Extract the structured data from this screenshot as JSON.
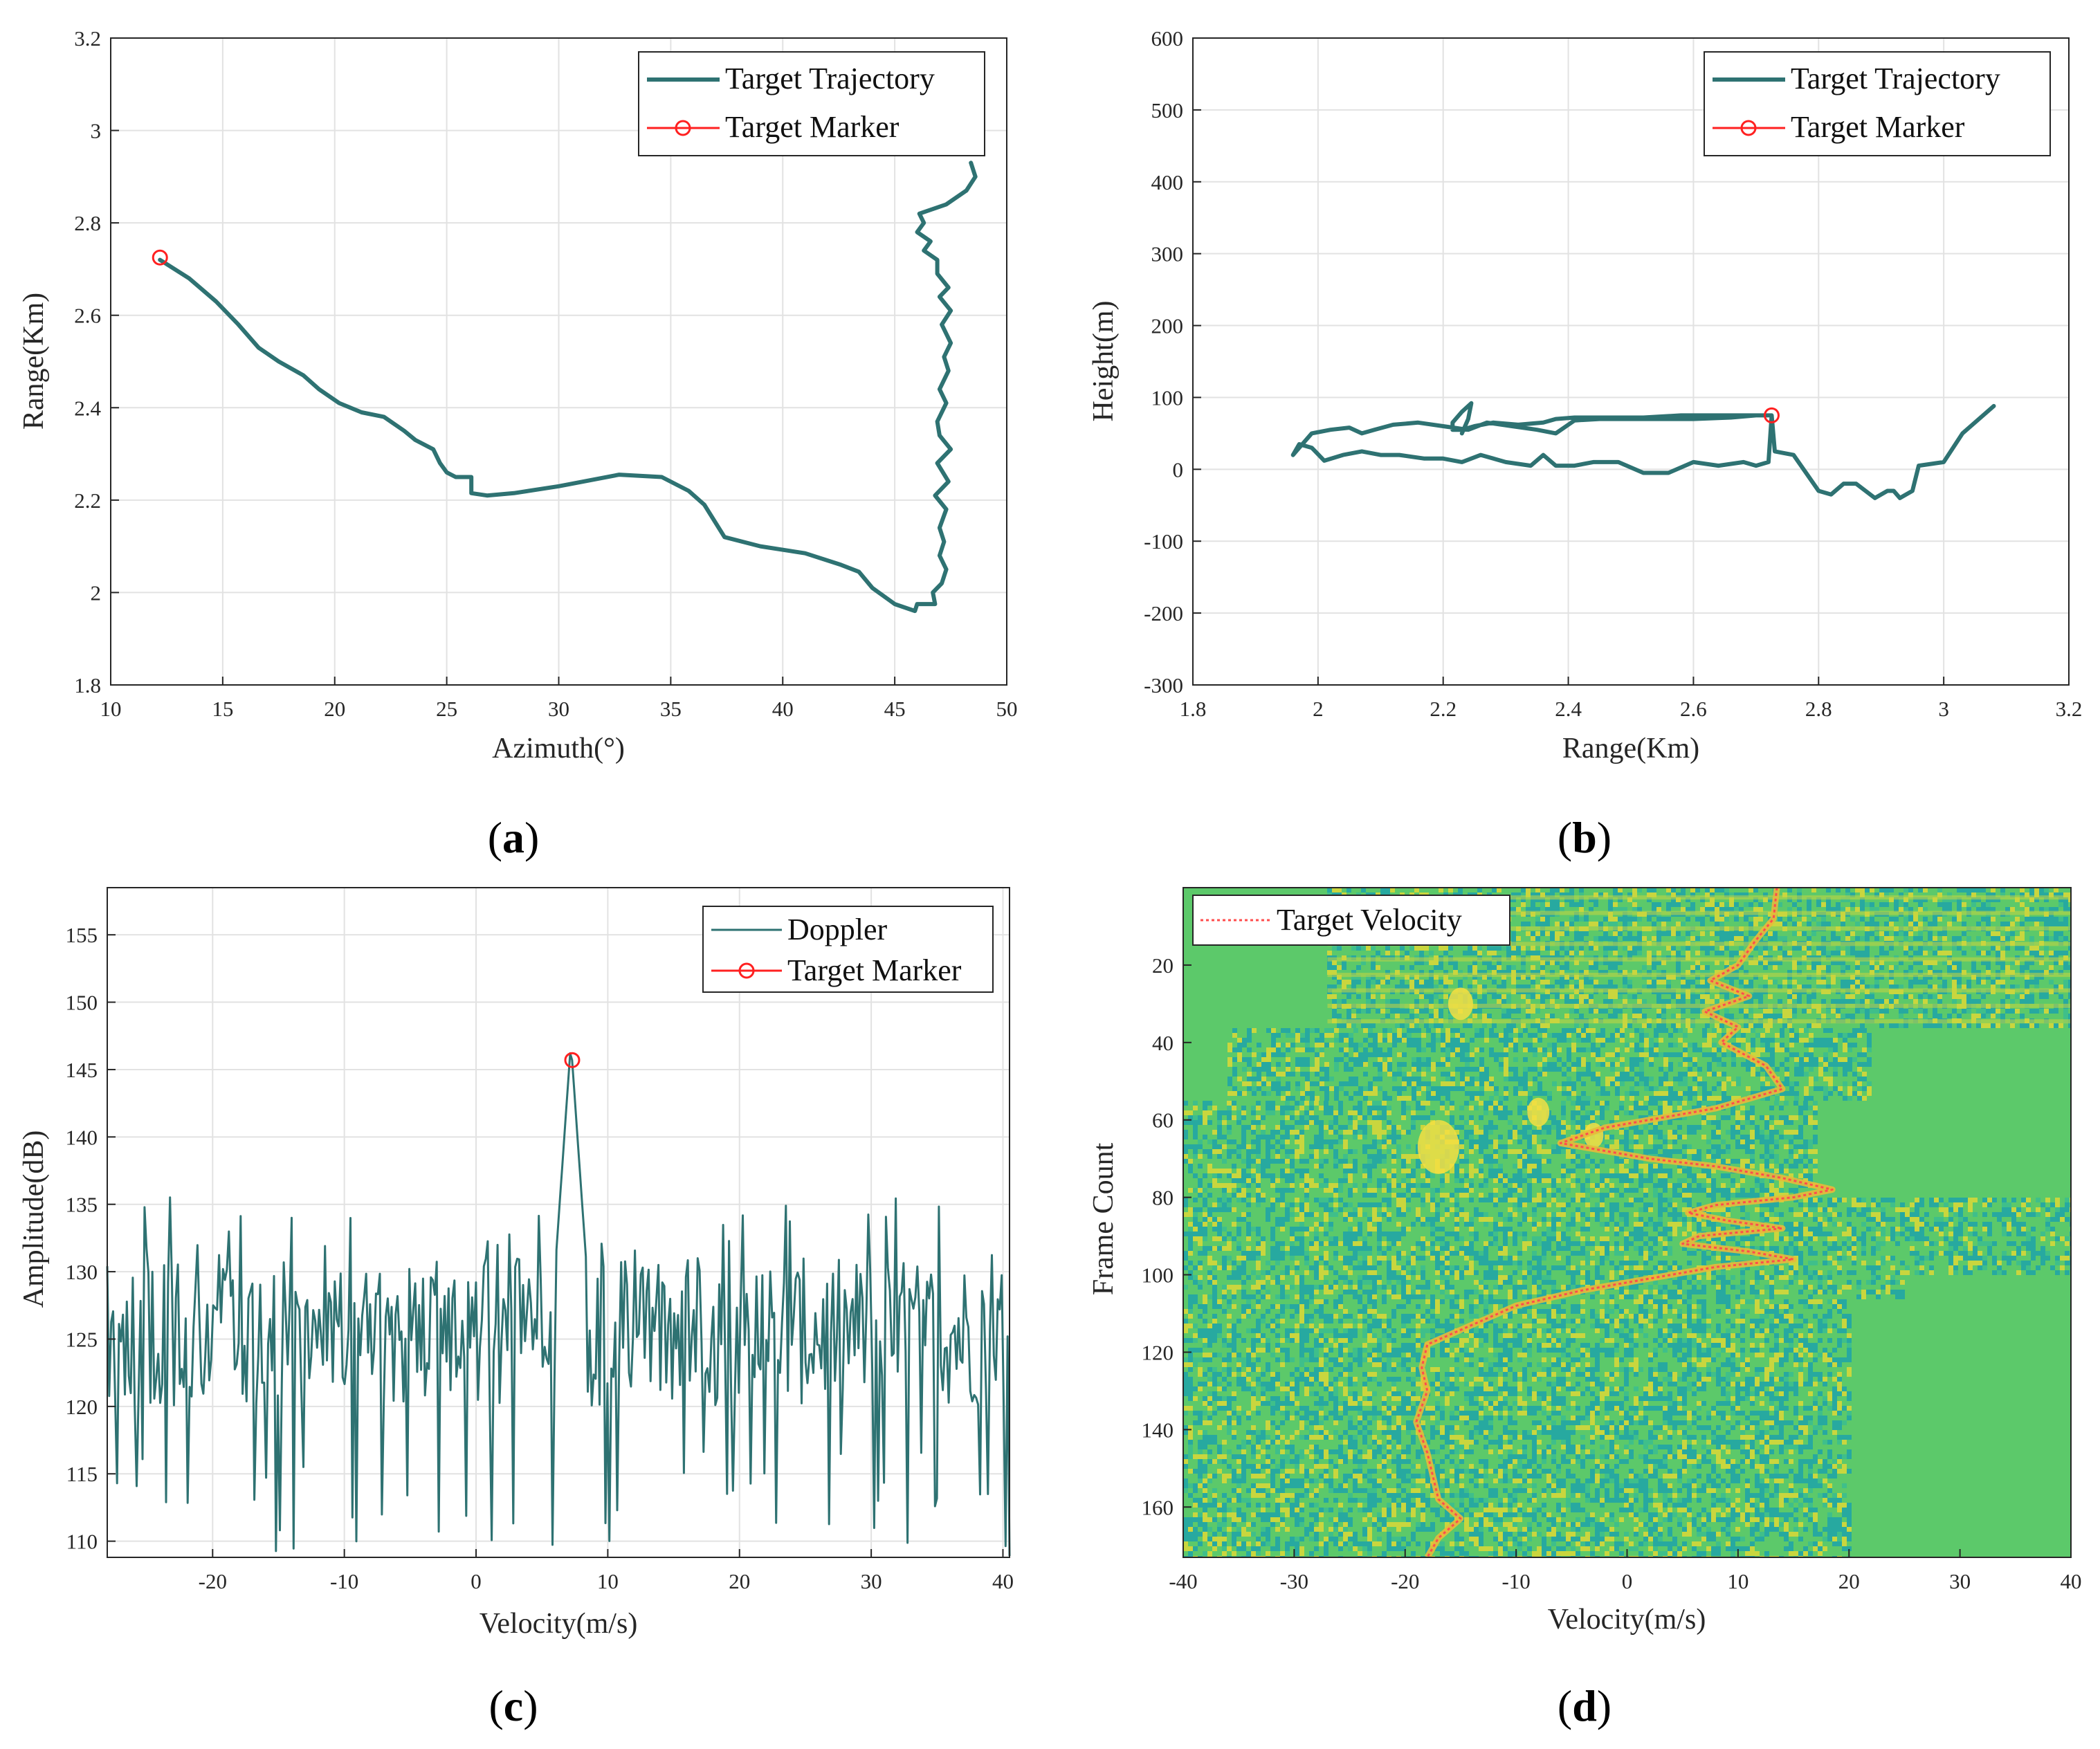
{
  "chart_data": [
    {
      "id": "a",
      "type": "line",
      "panel_label": "a",
      "xlabel": "Azimuth(°)",
      "ylabel": "Range(Km)",
      "xlim": [
        10,
        50
      ],
      "ylim": [
        1.8,
        3.2
      ],
      "xticks": [
        10,
        15,
        20,
        25,
        30,
        35,
        40,
        45,
        50
      ],
      "yticks": [
        1.8,
        2,
        2.2,
        2.4,
        2.6,
        2.8,
        3,
        3.2
      ],
      "ytick_labels": [
        "1.8",
        "2",
        "2.2",
        "2.4",
        "2.6",
        "2.8",
        "3",
        "3.2"
      ],
      "grid": true,
      "legend": {
        "location": "top-right",
        "entries": [
          "Target Trajectory",
          "Target Marker"
        ]
      },
      "series": [
        {
          "name": "Target Trajectory",
          "color": "#2e7272",
          "x": [
            12.2,
            13.5,
            14.7,
            15.7,
            16.6,
            17.5,
            18.6,
            19.3,
            20.2,
            21.2,
            22.2,
            23.1,
            23.6,
            24.4,
            24.7,
            25.0,
            25.4,
            26.1,
            26.1,
            26.8,
            28.0,
            30.0,
            32.7,
            34.6,
            35.8,
            36.5,
            37.4,
            39.0,
            41.0,
            42.6,
            43.4,
            44.0,
            45.0,
            45.9,
            46.0,
            46.8,
            46.7,
            47.1,
            47.3,
            47.0,
            47.2,
            47.0,
            47.3,
            46.8,
            47.4,
            46.9,
            47.5,
            47.0,
            46.9,
            47.3,
            47.0,
            47.4,
            47.2,
            47.5,
            47.1,
            47.5,
            47.0,
            47.4,
            46.9,
            46.9,
            46.3,
            46.6,
            46.0,
            46.3,
            46.1,
            47.3,
            48.2,
            48.6,
            48.4
          ],
          "y": [
            2.72,
            2.68,
            2.63,
            2.58,
            2.53,
            2.5,
            2.47,
            2.44,
            2.41,
            2.39,
            2.38,
            2.35,
            2.33,
            2.31,
            2.28,
            2.26,
            2.25,
            2.25,
            2.215,
            2.21,
            2.215,
            2.23,
            2.255,
            2.25,
            2.22,
            2.19,
            2.12,
            2.1,
            2.085,
            2.06,
            2.045,
            2.01,
            1.975,
            1.96,
            1.975,
            1.975,
            2.0,
            2.02,
            2.05,
            2.08,
            2.11,
            2.14,
            2.18,
            2.21,
            2.24,
            2.28,
            2.31,
            2.34,
            2.37,
            2.41,
            2.44,
            2.48,
            2.51,
            2.54,
            2.58,
            2.61,
            2.64,
            2.66,
            2.69,
            2.72,
            2.74,
            2.76,
            2.78,
            2.8,
            2.82,
            2.84,
            2.87,
            2.9,
            2.93
          ]
        },
        {
          "name": "Target Marker",
          "color": "#ff2020",
          "marker": "circle",
          "x": [
            12.2
          ],
          "y": [
            2.725
          ]
        }
      ]
    },
    {
      "id": "b",
      "type": "line",
      "panel_label": "b",
      "xlabel": "Range(Km)",
      "ylabel": "Height(m)",
      "xlim": [
        1.8,
        3.2
      ],
      "ylim": [
        -300,
        600
      ],
      "xticks": [
        1.8,
        2,
        2.2,
        2.4,
        2.6,
        2.8,
        3,
        3.2
      ],
      "xtick_labels": [
        "1.8",
        "2",
        "2.2",
        "2.4",
        "2.6",
        "2.8",
        "3",
        "3.2"
      ],
      "yticks": [
        -300,
        -200,
        -100,
        0,
        100,
        200,
        300,
        400,
        500,
        600
      ],
      "grid": true,
      "legend": {
        "location": "top-right",
        "entries": [
          "Target Trajectory",
          "Target Marker"
        ]
      },
      "series": [
        {
          "name": "Target Trajectory",
          "color": "#2e7272",
          "x": [
            3.08,
            3.03,
            3.0,
            2.96,
            2.95,
            2.93,
            2.92,
            2.91,
            2.89,
            2.86,
            2.84,
            2.82,
            2.8,
            2.78,
            2.76,
            2.73,
            2.725,
            2.72,
            2.7,
            2.68,
            2.64,
            2.6,
            2.56,
            2.52,
            2.48,
            2.44,
            2.41,
            2.38,
            2.36,
            2.34,
            2.3,
            2.26,
            2.23,
            2.2,
            2.17,
            2.13,
            2.1,
            2.07,
            2.04,
            2.01,
            1.99,
            1.97,
            1.96,
            1.97,
            1.99,
            2.02,
            2.05,
            2.07,
            2.09,
            2.12,
            2.16,
            2.2,
            2.24,
            2.27,
            2.31,
            2.35,
            2.38,
            2.41,
            2.45,
            2.5,
            2.55,
            2.6,
            2.66,
            2.7,
            2.725,
            2.71,
            2.66,
            2.58,
            2.52,
            2.46,
            2.41,
            2.38,
            2.36,
            2.32,
            2.28,
            2.25,
            2.23,
            2.215,
            2.215,
            2.23,
            2.245,
            2.24,
            2.23
          ],
          "y": [
            88,
            50,
            10,
            5,
            -30,
            -40,
            -30,
            -30,
            -40,
            -20,
            -20,
            -35,
            -30,
            -5,
            20,
            25,
            75,
            10,
            5,
            10,
            5,
            10,
            -5,
            -5,
            10,
            10,
            5,
            5,
            20,
            5,
            10,
            20,
            10,
            15,
            15,
            20,
            20,
            25,
            20,
            12,
            30,
            35,
            20,
            30,
            50,
            55,
            58,
            50,
            55,
            62,
            65,
            60,
            55,
            65,
            60,
            55,
            50,
            68,
            70,
            70,
            70,
            70,
            72,
            75,
            75,
            75,
            75,
            75,
            72,
            72,
            72,
            70,
            65,
            62,
            65,
            60,
            55,
            55,
            65,
            80,
            92,
            70,
            50
          ]
        },
        {
          "name": "Target Marker",
          "color": "#ff2020",
          "marker": "circle",
          "x": [
            2.725
          ],
          "y": [
            75
          ]
        }
      ]
    },
    {
      "id": "c",
      "type": "line",
      "panel_label": "c",
      "xlabel": "Velocity(m/s)",
      "ylabel": "Amplitude(dB)",
      "xlim": [
        -28,
        40.5
      ],
      "ylim": [
        108.8,
        158.5
      ],
      "xticks": [
        -20,
        -10,
        0,
        10,
        20,
        30,
        40
      ],
      "yticks": [
        110,
        115,
        120,
        125,
        130,
        135,
        140,
        145,
        150,
        155
      ],
      "grid": true,
      "legend": {
        "location": "top-right",
        "entries": [
          "Doppler",
          "Target Marker"
        ]
      },
      "series": [
        {
          "name": "Doppler",
          "color": "#2e7272",
          "generated_noise": {
            "mean": 125.5,
            "min": 108.8,
            "max": 135.8,
            "points": 460
          },
          "peak": {
            "x": 7.2,
            "y": 147
          }
        },
        {
          "name": "Target Marker",
          "color": "#ff2020",
          "marker": "circle",
          "x": [
            7.3
          ],
          "y": [
            145.7
          ]
        }
      ]
    },
    {
      "id": "d",
      "type": "heatmap",
      "panel_label": "d",
      "xlabel": "Velocity(m/s)",
      "ylabel": "Frame Count",
      "xlim": [
        -40,
        40
      ],
      "ylim": [
        173,
        0
      ],
      "xticks": [
        -40,
        -30,
        -20,
        -10,
        0,
        10,
        20,
        30,
        40
      ],
      "yticks": [
        20,
        40,
        60,
        80,
        100,
        120,
        140,
        160
      ],
      "grid": false,
      "legend": {
        "location": "top-left",
        "entries": [
          "Target Velocity"
        ]
      },
      "colors": {
        "background": "#5cc96a",
        "noise_a": "#27a9a0",
        "noise_b": "#c9d63e",
        "hot": "#f4df42",
        "track": "#e8b93a"
      },
      "series": [
        {
          "name": "Target Velocity",
          "color": "#ff4d4d",
          "style": "dotted",
          "frames": [
            0,
            8,
            14,
            20,
            24,
            28,
            32,
            36,
            40,
            46,
            52,
            57,
            62,
            66,
            68,
            70,
            72,
            75,
            78,
            80,
            82,
            84,
            86,
            88,
            90,
            92,
            94,
            96,
            98,
            101,
            104,
            108,
            113,
            118,
            124,
            130,
            138,
            146,
            152,
            158,
            163,
            168,
            173
          ],
          "velocity": [
            13.5,
            13.2,
            11.5,
            10.0,
            7.5,
            11.0,
            7.0,
            10.0,
            8.5,
            12.5,
            14.0,
            8.0,
            -2.0,
            -6.0,
            -2.0,
            2.0,
            8.0,
            14.0,
            18.5,
            15.0,
            8.0,
            5.5,
            9.0,
            14.0,
            6.5,
            5.0,
            11.0,
            15.0,
            8.0,
            2.0,
            -4.0,
            -10.0,
            -14.0,
            -18.0,
            -18.5,
            -18.0,
            -19.0,
            -18.0,
            -17.5,
            -17.0,
            -15.0,
            -17.0,
            -18.0
          ]
        }
      ]
    }
  ]
}
